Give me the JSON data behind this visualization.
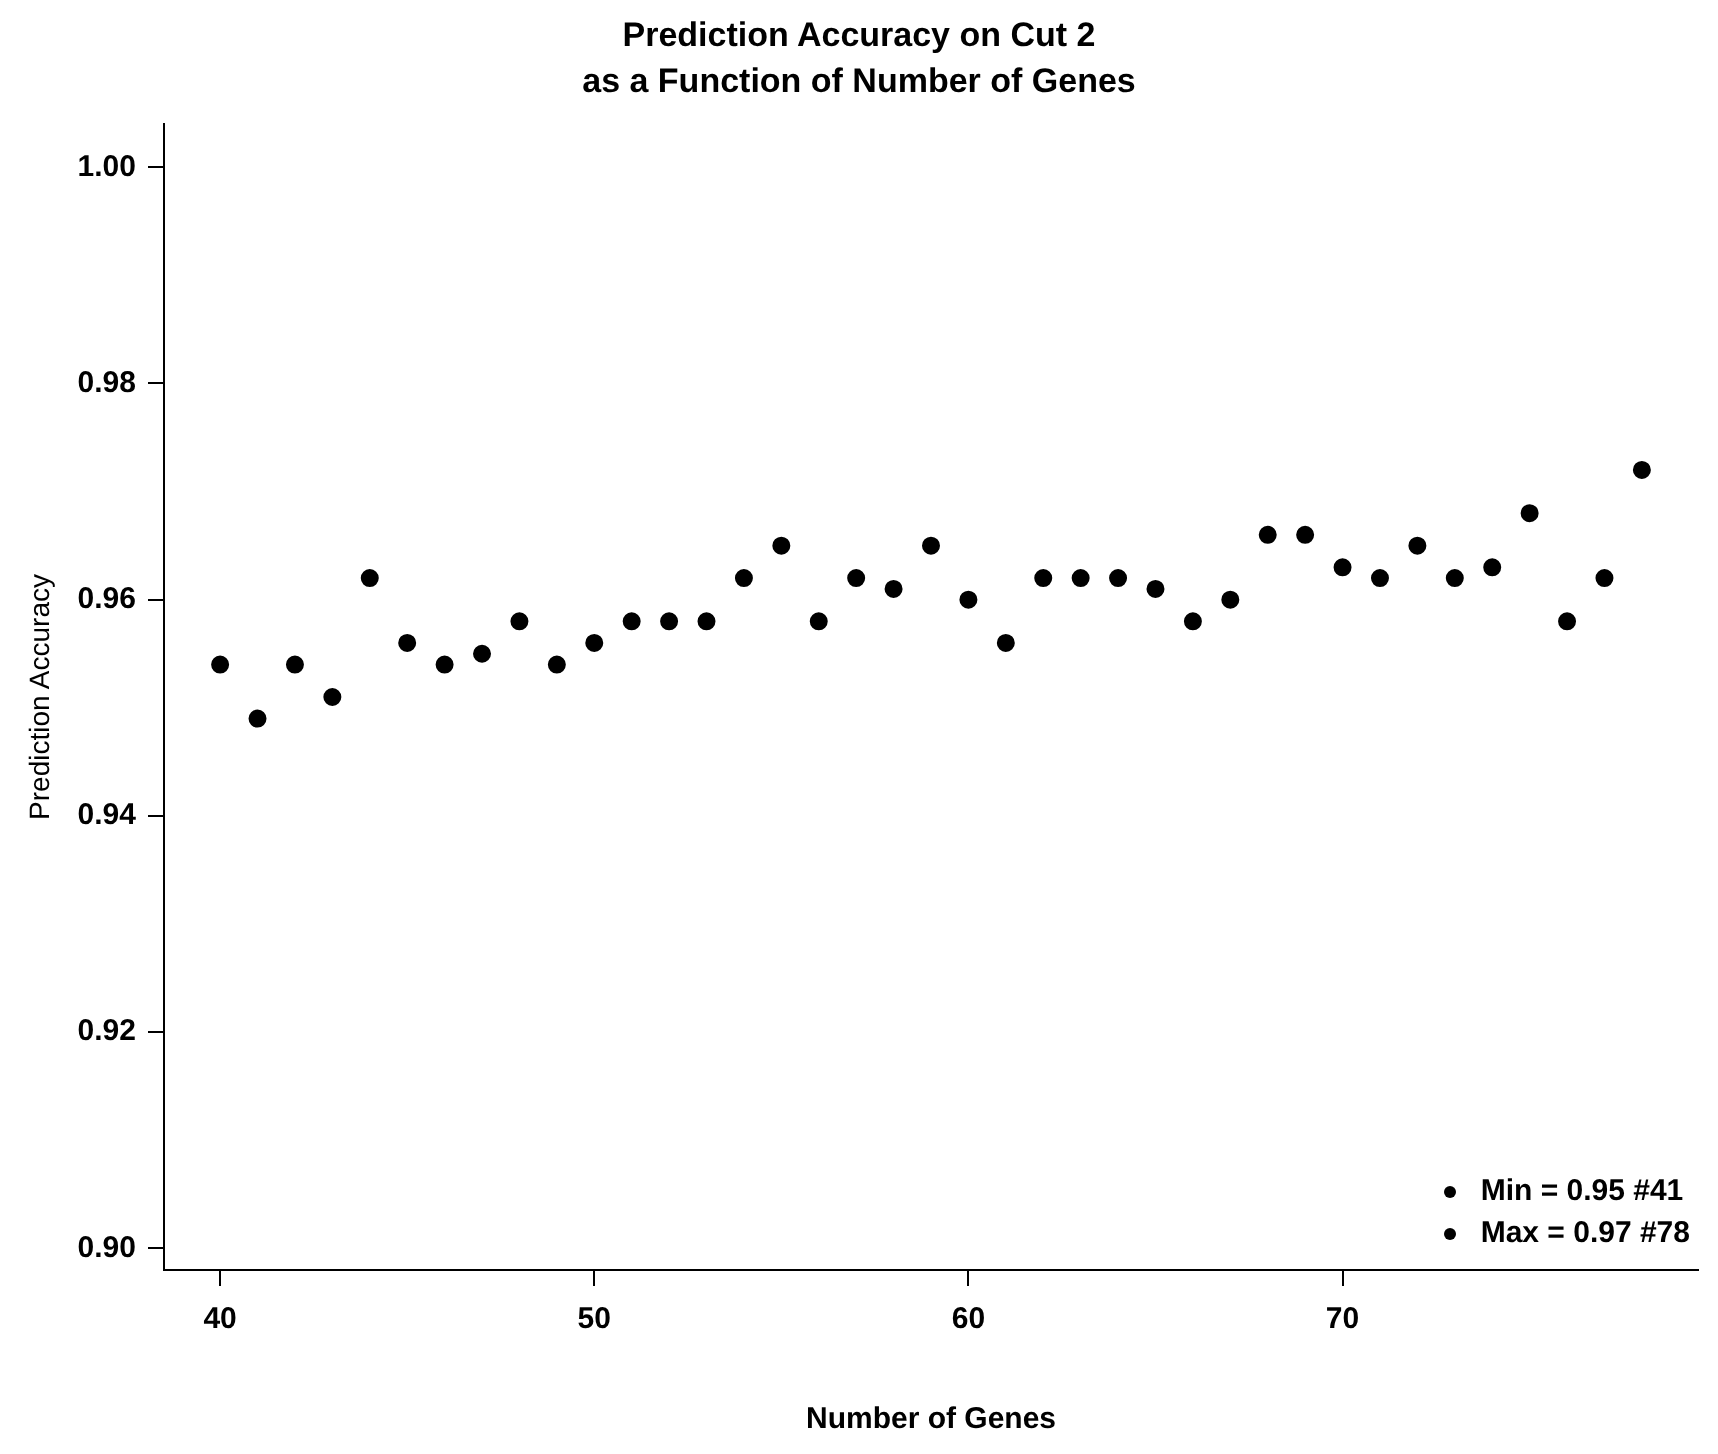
{
  "chart_data": {
    "type": "scatter",
    "title": "Prediction Accuracy on Cut 2\nas a Function of Number of Genes",
    "xlabel": "Number of Genes",
    "ylabel": "Prediction Accuracy",
    "x": [
      40,
      41,
      42,
      43,
      44,
      45,
      46,
      47,
      48,
      49,
      50,
      51,
      52,
      53,
      54,
      55,
      56,
      57,
      58,
      59,
      60,
      61,
      62,
      63,
      64,
      65,
      66,
      67,
      68,
      69,
      70,
      71,
      72,
      73,
      74,
      75,
      76,
      77,
      78
    ],
    "series": [
      {
        "color": "#000000",
        "values": [
          0.954,
          0.949,
          0.954,
          0.951,
          0.962,
          0.956,
          0.954,
          0.955,
          0.958,
          0.954,
          0.956,
          0.958,
          0.958,
          0.958,
          0.962,
          0.965,
          0.958,
          0.962,
          0.961,
          0.965,
          0.96,
          0.956,
          0.962,
          0.962,
          0.962,
          0.961,
          0.958,
          0.96,
          0.966,
          0.966,
          0.963,
          0.962,
          0.965,
          0.962,
          0.963,
          0.968,
          0.958,
          0.962,
          0.972
        ]
      }
    ],
    "xlim": [
      38.5,
      79.5
    ],
    "ylim": [
      0.898,
      1.004
    ],
    "xticks": [
      40,
      50,
      60,
      70
    ],
    "yticks": [
      {
        "value": 0.9,
        "label": "0.90"
      },
      {
        "value": 0.92,
        "label": "0.92"
      },
      {
        "value": 0.94,
        "label": "0.94"
      },
      {
        "value": 0.96,
        "label": "0.96"
      },
      {
        "value": 0.98,
        "label": "0.98"
      },
      {
        "value": 1.0,
        "label": "1.00"
      }
    ],
    "grid": false,
    "legend": false,
    "marker": "circle",
    "annotations": [
      "Min = 0.95 #41",
      "Max = 0.97 #78"
    ]
  }
}
